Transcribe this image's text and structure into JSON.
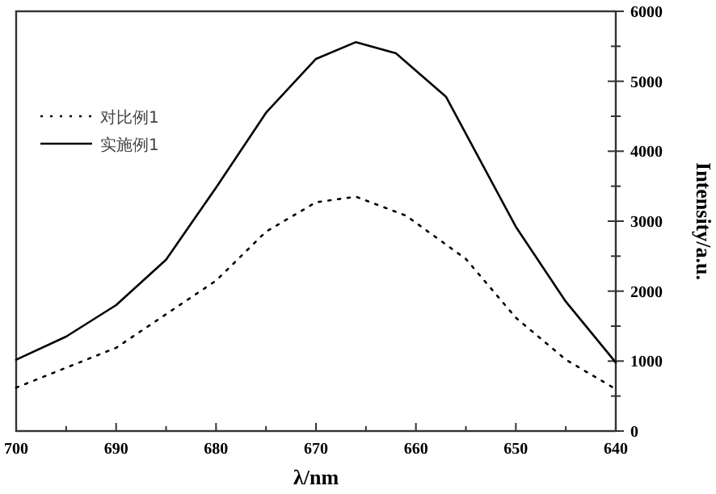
{
  "chart_data": {
    "type": "line",
    "xlabel": "λ/nm",
    "ylabel": "Intensity/a.u.",
    "xlim": [
      700,
      640
    ],
    "ylim": [
      0,
      6000
    ],
    "xticks": [
      700,
      {
        "value": 695,
        "label": null
      },
      690,
      {
        "value": 685,
        "label": null
      },
      680,
      {
        "value": 675,
        "label": null
      },
      670,
      {
        "value": 665,
        "label": null
      },
      660,
      {
        "value": 655,
        "label": null
      },
      650,
      {
        "value": 645,
        "label": null
      },
      640
    ],
    "yticks": [
      0,
      {
        "value": 500,
        "label": null
      },
      1000,
      {
        "value": 1500,
        "label": null
      },
      2000,
      {
        "value": 2500,
        "label": null
      },
      3000,
      {
        "value": 3500,
        "label": null
      },
      4000,
      {
        "value": 4500,
        "label": null
      },
      5000,
      {
        "value": 5500,
        "label": null
      },
      6000
    ],
    "legend": "top left",
    "grid": false,
    "series": [
      {
        "name": "对比例1",
        "color": "#000000",
        "line_style": "dotted",
        "x": [
          700,
          690,
          680,
          675,
          670,
          666,
          661,
          655,
          650,
          645,
          640
        ],
        "values": [
          620,
          1190,
          2150,
          2850,
          3270,
          3350,
          3080,
          2460,
          1620,
          1020,
          600
        ]
      },
      {
        "name": "实施例1",
        "color": "#000000",
        "line_style": "solid",
        "x": [
          700,
          695,
          690,
          685,
          680,
          675,
          670,
          666,
          662,
          657,
          650,
          645,
          640
        ],
        "values": [
          1020,
          1350,
          1800,
          2450,
          3480,
          4550,
          5320,
          5560,
          5400,
          4780,
          2920,
          1850,
          980
        ]
      }
    ]
  }
}
